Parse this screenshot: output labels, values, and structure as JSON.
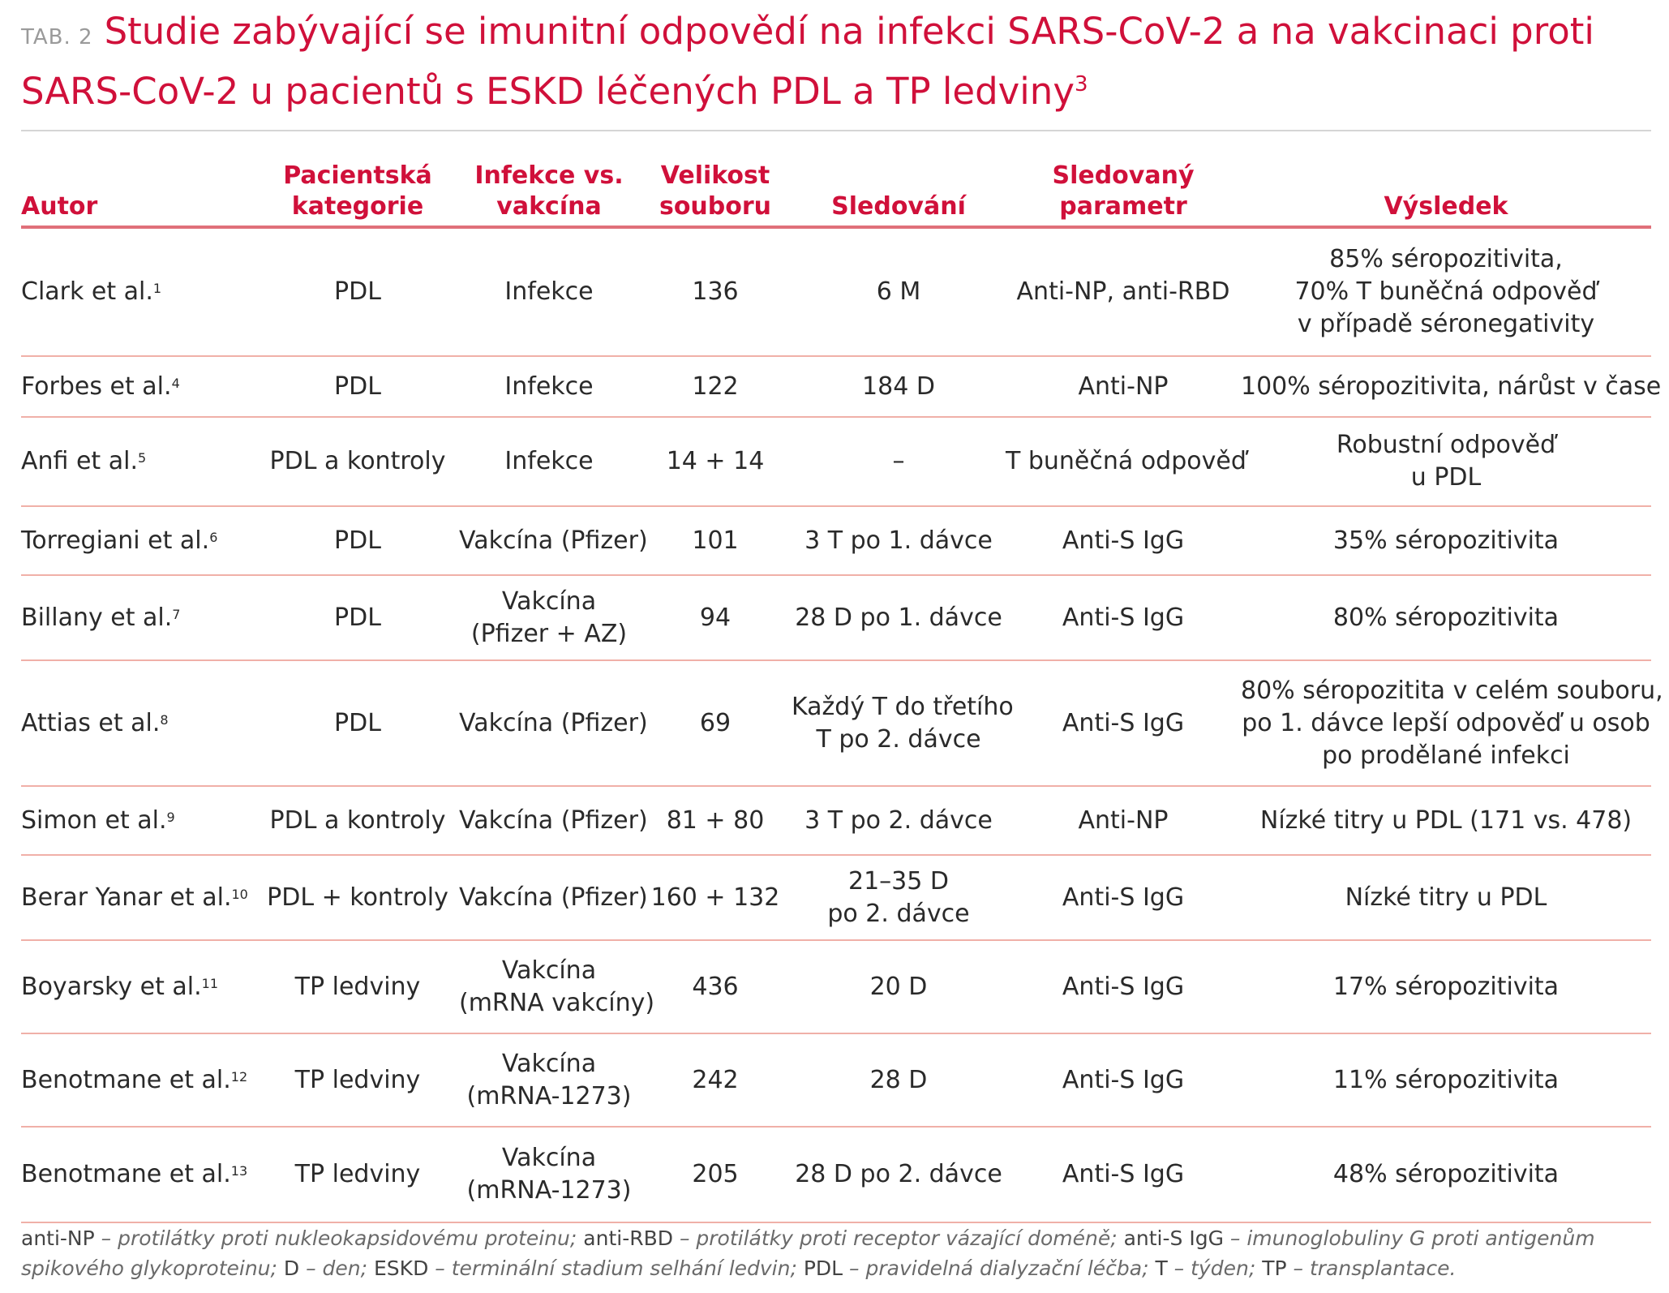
{
  "title": {
    "label": "TAB. 2",
    "text": "Studie zabývající se imunitní odpovědí na infekci SARS-CoV-2 a na vakcinaci proti SARS-CoV-2 u pacientů s ESKD léčených PDL a TP ledviny",
    "ref": "3"
  },
  "headers": {
    "autor": "Autor",
    "kategorie_1": "Pacientská",
    "kategorie_2": "kategorie",
    "infekce_1": "Infekce vs.",
    "infekce_2": "vakcína",
    "velikost_1": "Velikost",
    "velikost_2": "souboru",
    "sledovani": "Sledování",
    "parametr_1": "Sledovaný",
    "parametr_2": "parametr",
    "vysledek": "Výsledek"
  },
  "rows": [
    {
      "autor": "Clark et al.",
      "ref": "1",
      "kategorie": "PDL",
      "infekce": [
        "Infekce"
      ],
      "velikost": "136",
      "sledovani": [
        "6 M"
      ],
      "parametr": "Anti-NP, anti-RBD",
      "vysledek": [
        "85% séropozitivita,",
        "70% T buněčná odpověď",
        "v případě séronegativity"
      ]
    },
    {
      "autor": "Forbes et al.",
      "ref": "4",
      "kategorie": "PDL",
      "infekce": [
        "Infekce"
      ],
      "velikost": "122",
      "sledovani": [
        "184 D"
      ],
      "parametr": "Anti-NP",
      "vysledek": [
        "100% séropozitivita, nárůst v čase"
      ]
    },
    {
      "autor": "Anfi et al.",
      "ref": "5",
      "kategorie": "PDL a kontroly",
      "infekce": [
        "Infekce"
      ],
      "velikost": "14 + 14",
      "sledovani": [
        "–"
      ],
      "parametr": "T buněčná odpověď",
      "vysledek": [
        "Robustní odpověď",
        "u PDL"
      ]
    },
    {
      "autor": "Torregiani et al.",
      "ref": "6",
      "kategorie": "PDL",
      "infekce": [
        "Vakcína (Pfizer)"
      ],
      "velikost": "101",
      "sledovani": [
        "3 T po 1. dávce"
      ],
      "parametr": "Anti-S IgG",
      "vysledek": [
        "35% séropozitivita"
      ]
    },
    {
      "autor": "Billany et al.",
      "ref": "7",
      "kategorie": "PDL",
      "infekce": [
        "Vakcína",
        "(Pfizer + AZ)"
      ],
      "velikost": "94",
      "sledovani": [
        "28 D po 1. dávce"
      ],
      "parametr": "Anti-S IgG",
      "vysledek": [
        "80% séropozitivita"
      ]
    },
    {
      "autor": "Attias et al.",
      "ref": "8",
      "kategorie": "PDL",
      "infekce": [
        "Vakcína (Pfizer)"
      ],
      "velikost": "69",
      "sledovani": [
        "Každý T do třetího",
        "T po 2. dávce"
      ],
      "parametr": "Anti-S IgG",
      "vysledek": [
        "80% séropozitita v celém souboru,",
        "po 1. dávce lepší odpověď u osob",
        "po prodělané infekci"
      ]
    },
    {
      "autor": "Simon et al.",
      "ref": "9",
      "kategorie": "PDL a kontroly",
      "infekce": [
        "Vakcína (Pfizer)"
      ],
      "velikost": "81 + 80",
      "sledovani": [
        "3 T po 2. dávce"
      ],
      "parametr": "Anti-NP",
      "vysledek": [
        "Nízké titry u PDL (171 vs. 478)"
      ]
    },
    {
      "autor": "Berar Yanar et al.",
      "ref": "10",
      "kategorie": "PDL + kontroly",
      "infekce": [
        "Vakcína (Pfizer)"
      ],
      "velikost": "160 + 132",
      "sledovani": [
        "21–35 D",
        "po 2. dávce"
      ],
      "parametr": "Anti-S IgG",
      "vysledek": [
        "Nízké titry u PDL"
      ]
    },
    {
      "autor": "Boyarsky et al.",
      "ref": "11",
      "kategorie": "TP ledviny",
      "infekce": [
        "Vakcína",
        "(mRNA vakcíny)"
      ],
      "velikost": "436",
      "sledovani": [
        "20 D"
      ],
      "parametr": "Anti-S IgG",
      "vysledek": [
        "17% séropozitivita"
      ]
    },
    {
      "autor": "Benotmane et al.",
      "ref": "12",
      "kategorie": "TP ledviny",
      "infekce": [
        "Vakcína",
        "(mRNA-1273)"
      ],
      "velikost": "242",
      "sledovani": [
        "28 D"
      ],
      "parametr": "Anti-S IgG",
      "vysledek": [
        "11% séropozitivita"
      ]
    },
    {
      "autor": "Benotmane et al.",
      "ref": "13",
      "kategorie": "TP ledviny",
      "infekce": [
        "Vakcína",
        "(mRNA-1273)"
      ],
      "velikost": "205",
      "sledovani": [
        "28 D po 2. dávce"
      ],
      "parametr": "Anti-S IgG",
      "vysledek": [
        "48% séropozitivita"
      ]
    }
  ],
  "footnote": [
    {
      "term": "anti-NP",
      "def": " – protilátky proti nukleokapsidovému proteinu; "
    },
    {
      "term": "anti-RBD",
      "def": " – protilátky proti receptor vázající doméně; "
    },
    {
      "term": "anti-S IgG",
      "def": " – imunoglobuliny G proti antigenům spikového glykoproteinu; "
    },
    {
      "term": "D",
      "def": " – den; "
    },
    {
      "term": "ESKD",
      "def": " – terminální stadium selhání ledvin; "
    },
    {
      "term": "PDL",
      "def": " – pravidelná dialyzační léčba; "
    },
    {
      "term": "T",
      "def": " – týden; "
    },
    {
      "term": "TP",
      "def": " – transplantace."
    }
  ]
}
